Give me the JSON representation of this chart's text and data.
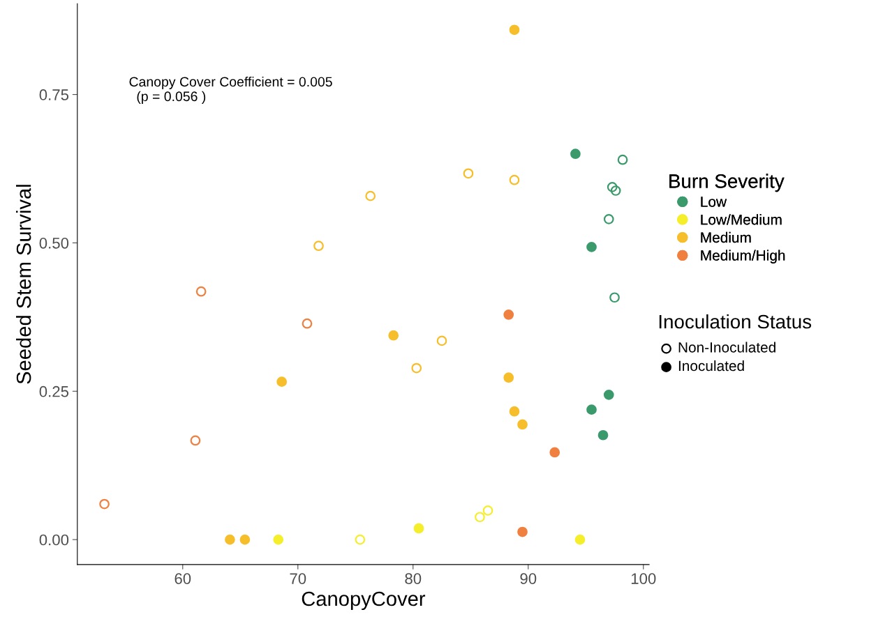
{
  "chart_data": {
    "type": "scatter",
    "xlabel": "CanopyCover",
    "ylabel": "Seeded Stem Survival",
    "xlim": [
      50.85,
      100.5
    ],
    "xticks": [
      60,
      70,
      80,
      90,
      100
    ],
    "ylim": [
      -0.042,
      0.903
    ],
    "yticks": [
      {
        "value": 0,
        "label": "0.00"
      },
      {
        "value": 0.25,
        "label": "0.25"
      },
      {
        "value": 0.5,
        "label": "0.50"
      },
      {
        "value": 0.75,
        "label": "0.75"
      }
    ],
    "grid": false,
    "legend": "right",
    "marker": "circle",
    "legend_title": [
      "Burn Severity",
      "Inoculation Status"
    ],
    "annotations": [
      "Canopy Cover Coefficient = 0.005\n  (p = 0.056 )",
      "Non-Inoculated",
      "Inoculated"
    ],
    "series": [
      {
        "name": "Low",
        "color": "#3a9a6b",
        "x": [
          94.1,
          95.5,
          95.5,
          97.0,
          96.5
        ],
        "values": [
          0.65,
          0.493,
          0.219,
          0.244,
          0.176
        ]
      },
      {
        "name": "Low/Medium",
        "color": "#f5ee2b",
        "x": [
          68.3,
          80.5,
          94.5
        ],
        "values": [
          0.0,
          0.019,
          0.0
        ]
      },
      {
        "name": "Medium",
        "color": "#f6be2b",
        "x": [
          88.8,
          68.6,
          78.3,
          88.3,
          88.8,
          89.5,
          64.1,
          65.4
        ],
        "values": [
          0.859,
          0.266,
          0.344,
          0.273,
          0.216,
          0.194,
          0.0,
          0.0
        ]
      },
      {
        "name": "Medium/High",
        "color": "#f08040",
        "x": [
          88.3,
          92.3,
          89.5
        ],
        "values": [
          0.379,
          0.147,
          0.013
        ]
      },
      {
        "color": "#3a9a6b",
        "x": [
          98.2,
          97.3,
          97.6,
          97.0,
          97.5
        ],
        "values": [
          0.64,
          0.594,
          0.588,
          0.54,
          0.408
        ]
      },
      {
        "color": "#f5ee2b",
        "x": [
          75.4,
          85.8,
          86.5
        ],
        "values": [
          0.0,
          0.038,
          0.049
        ]
      },
      {
        "color": "#f6be2b",
        "x": [
          71.8,
          76.3,
          84.8,
          88.8,
          82.5,
          80.3
        ],
        "values": [
          0.495,
          0.579,
          0.617,
          0.606,
          0.335,
          0.289
        ]
      },
      {
        "color": "#f08040",
        "x": [
          61.6,
          70.8,
          61.1,
          53.2
        ],
        "values": [
          0.418,
          0.364,
          0.167,
          0.06
        ]
      }
    ]
  }
}
